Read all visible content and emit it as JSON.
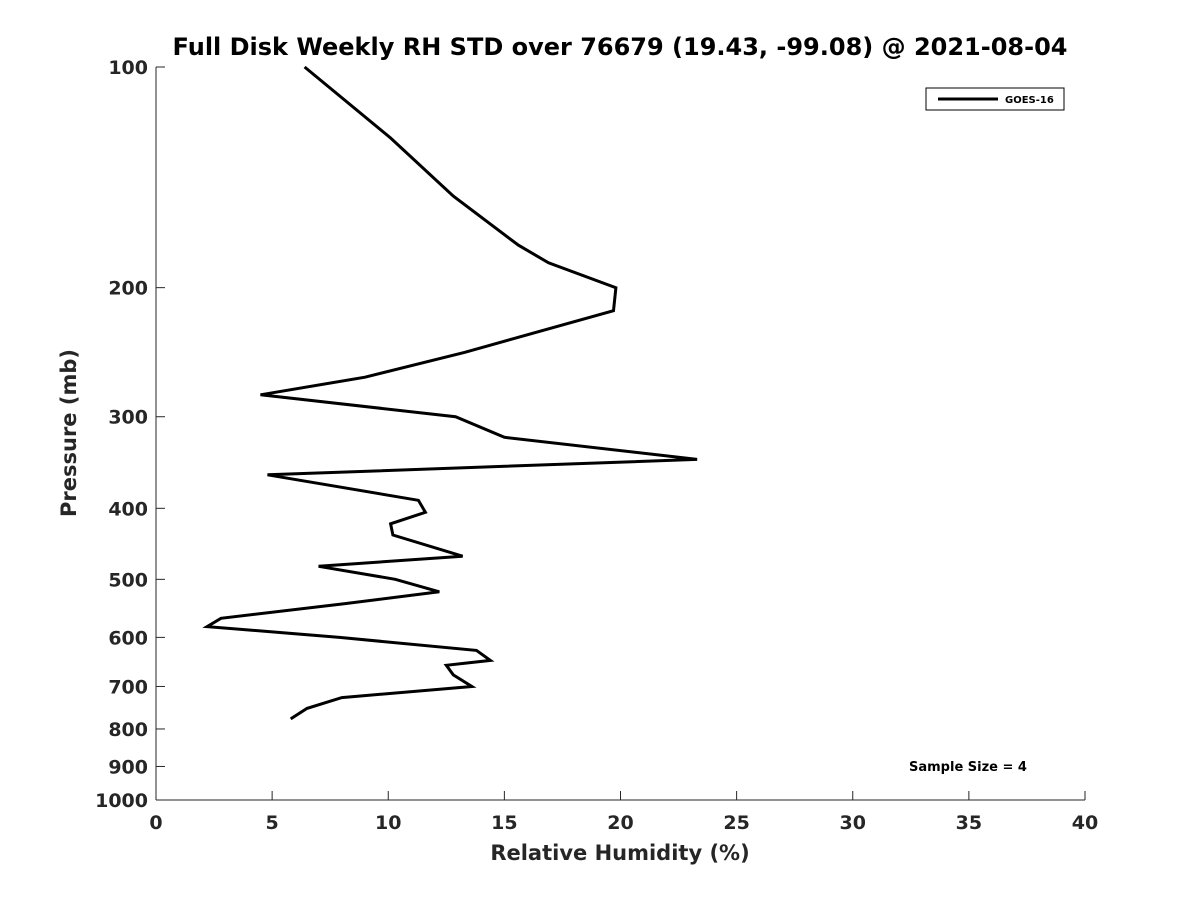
{
  "chart_data": {
    "type": "line",
    "title": "Full Disk Weekly RH STD over 76679 (19.43, -99.08) @ 2021-08-04",
    "xlabel": "Relative Humidity (%)",
    "ylabel": "Pressure (mb)",
    "xlim": [
      0,
      40
    ],
    "ylim": [
      1000,
      100
    ],
    "yscale": "log",
    "xticks": [
      0,
      5,
      10,
      15,
      20,
      25,
      30,
      35,
      40
    ],
    "yticks": [
      100,
      200,
      300,
      400,
      500,
      600,
      700,
      800,
      900,
      1000
    ],
    "grid": false,
    "legend_position": "top-right",
    "annotation": "Sample Size = 4",
    "series": [
      {
        "name": "GOES-16",
        "color": "#000000",
        "x": [
          6.4,
          10.1,
          12.8,
          15.6,
          16.9,
          19.8,
          19.7,
          13.3,
          9.0,
          4.5,
          12.9,
          15.0,
          23.3,
          4.8,
          11.3,
          11.6,
          10.1,
          10.2,
          13.2,
          7.0,
          10.3,
          12.2,
          8.1,
          2.8,
          2.2,
          7.9,
          13.8,
          14.4,
          12.5,
          12.8,
          13.6,
          8.0,
          6.5,
          5.8
        ],
        "y": [
          100,
          125,
          150,
          175,
          185,
          200,
          215,
          245,
          265,
          280,
          300,
          320,
          343,
          360,
          390,
          405,
          420,
          435,
          465,
          480,
          500,
          520,
          540,
          565,
          580,
          600,
          625,
          645,
          655,
          675,
          700,
          725,
          750,
          775
        ]
      }
    ]
  }
}
